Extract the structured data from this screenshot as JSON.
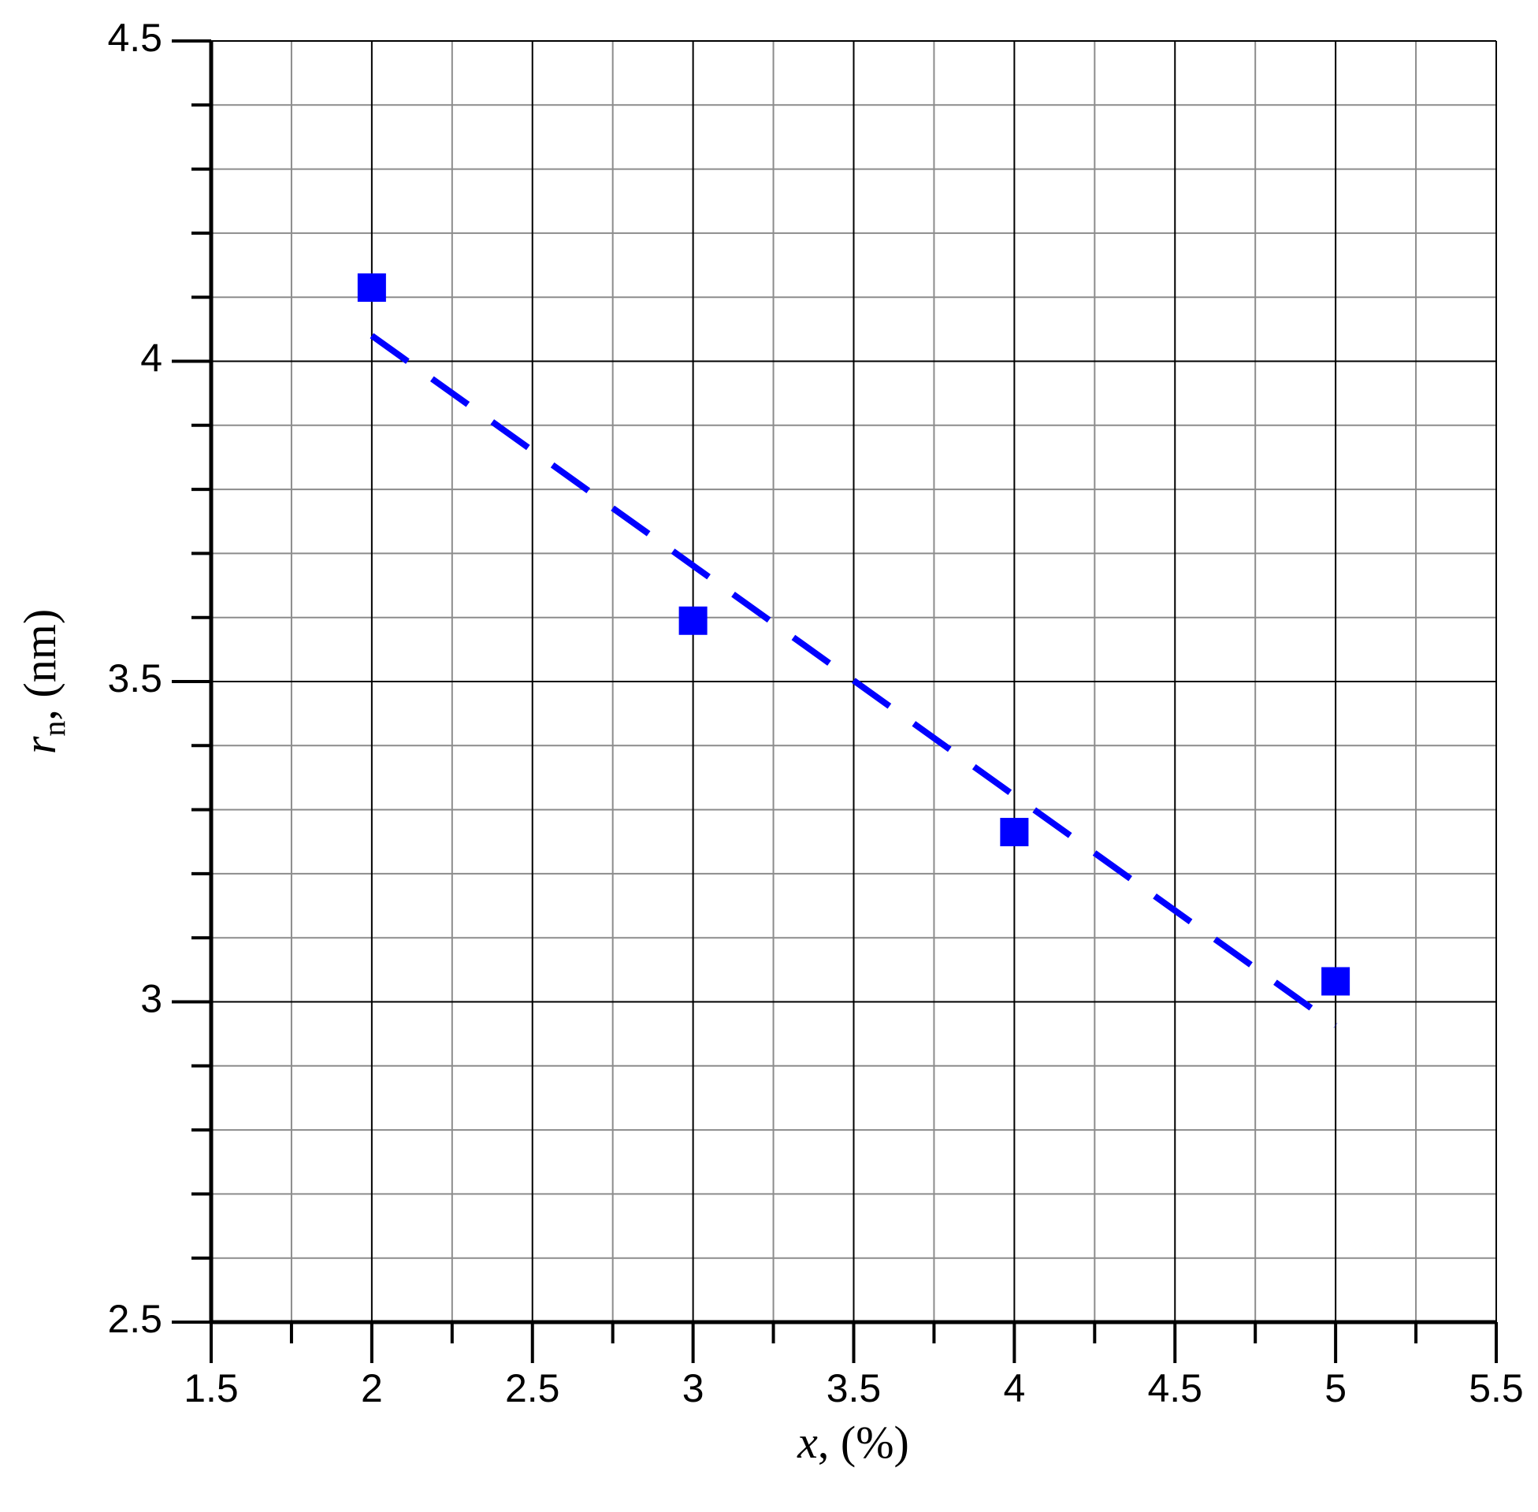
{
  "chart_data": {
    "type": "scatter",
    "xlabel_symbol": "x",
    "xlabel_rest": ", (%)",
    "ylabel_symbol": "r",
    "ylabel_subscript": "n",
    "ylabel_rest": ", (nm)",
    "xlim": [
      1.5,
      5.5
    ],
    "ylim": [
      2.5,
      4.5
    ],
    "xticks": [
      1.5,
      2,
      2.5,
      3,
      3.5,
      4,
      4.5,
      5,
      5.5
    ],
    "yticks": [
      2.5,
      3,
      3.5,
      4,
      4.5
    ],
    "xticks_minor": [
      1.75,
      2.25,
      2.75,
      3.25,
      3.75,
      4.25,
      4.75,
      5.25
    ],
    "yticks_minor": [
      2.6,
      2.7,
      2.8,
      2.9,
      3.1,
      3.2,
      3.3,
      3.4,
      3.6,
      3.7,
      3.8,
      3.9,
      4.1,
      4.2,
      4.3,
      4.4
    ],
    "grid": true,
    "series": [
      {
        "type": "scatter",
        "color": "#0000ff",
        "x": [
          2,
          3,
          4,
          5
        ],
        "values": [
          4.115,
          3.595,
          3.265,
          3.032
        ]
      },
      {
        "type": "line",
        "dashed": true,
        "color": "#0000ff",
        "x": [
          2,
          5
        ],
        "values": [
          4.04,
          2.963
        ]
      }
    ]
  }
}
